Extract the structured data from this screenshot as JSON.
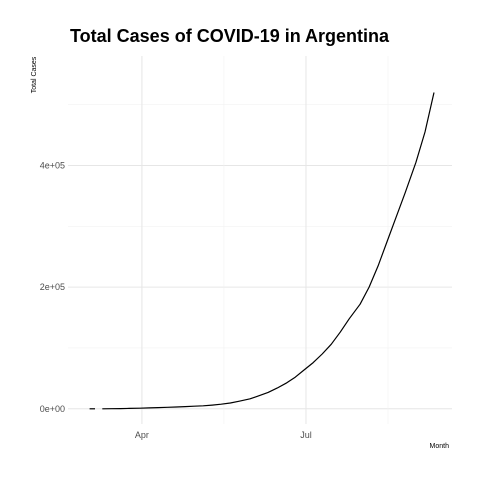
{
  "chart_data": {
    "type": "line",
    "title": "Total Cases of COVID-19 in Argentina",
    "xlabel": "Month",
    "ylabel": "Total Cases",
    "x_type": "date",
    "xlim": [
      "2020-02-20",
      "2020-09-20"
    ],
    "ylim": [
      -25000,
      580000
    ],
    "x_ticks": [
      {
        "date": "2020-04-01",
        "label": "Apr"
      },
      {
        "date": "2020-07-01",
        "label": "Jul"
      }
    ],
    "y_ticks": [
      {
        "value": 0,
        "label": "0e+00"
      },
      {
        "value": 200000,
        "label": "2e+05"
      },
      {
        "value": 400000,
        "label": "4e+05"
      }
    ],
    "grid": true,
    "legend": "none",
    "color": "#000000",
    "series": [
      {
        "segments": [
          {
            "x": [
              "2020-03-03",
              "2020-03-06"
            ],
            "y": [
              1,
              2
            ]
          },
          {
            "x": [
              "2020-03-10",
              "2020-03-15",
              "2020-03-20",
              "2020-03-25",
              "2020-03-31",
              "2020-04-05",
              "2020-04-10",
              "2020-04-15",
              "2020-04-20",
              "2020-04-25",
              "2020-04-30",
              "2020-05-05",
              "2020-05-10",
              "2020-05-15",
              "2020-05-20",
              "2020-05-25",
              "2020-05-31",
              "2020-06-05",
              "2020-06-10",
              "2020-06-15",
              "2020-06-20",
              "2020-06-25",
              "2020-06-30",
              "2020-07-05",
              "2020-07-10",
              "2020-07-15",
              "2020-07-20",
              "2020-07-25",
              "2020-07-31",
              "2020-08-05",
              "2020-08-10",
              "2020-08-15",
              "2020-08-20",
              "2020-08-25",
              "2020-08-31",
              "2020-09-05",
              "2020-09-10"
            ],
            "y": [
              0,
              100,
              300,
              600,
              1000,
              1500,
              2000,
              2500,
              3000,
              3600,
              4300,
              5000,
              6000,
              7500,
              9500,
              12500,
              16500,
              21500,
              27000,
              34000,
              42000,
              52000,
              64000,
              76000,
              90000,
              106000,
              126000,
              148000,
              172000,
              200000,
              235000,
              275000,
              315000,
              355000,
              405000,
              455000,
              520000
            ]
          }
        ]
      }
    ]
  }
}
